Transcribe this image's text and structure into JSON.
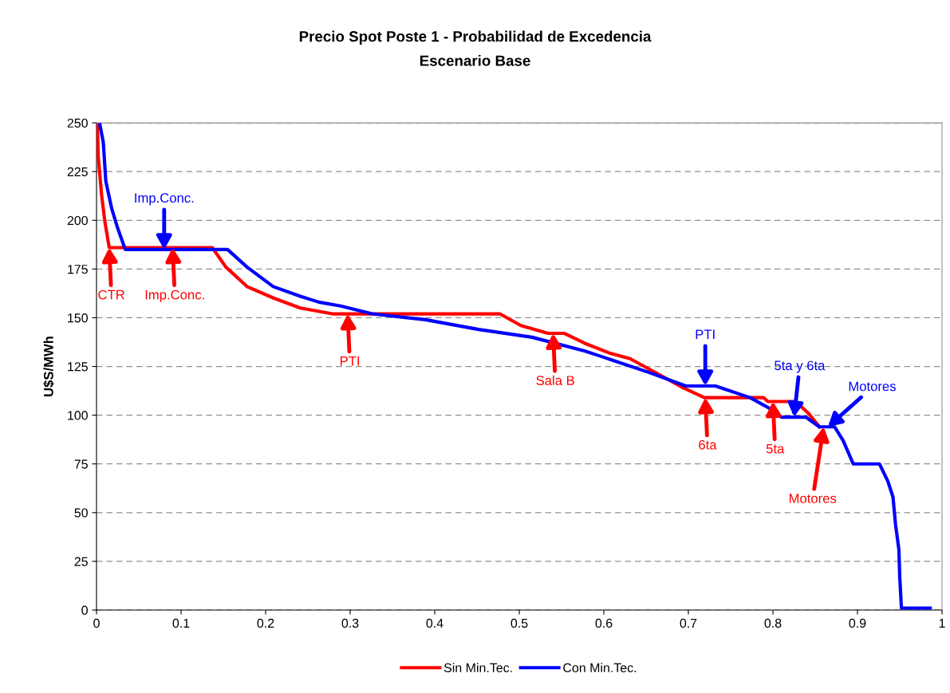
{
  "chart_data": {
    "type": "line",
    "title": "Precio Spot Poste 1 - Probabilidad de Excedencia",
    "subtitle": "Escenario Base",
    "ylabel": "U$S/MWh",
    "xlim": [
      0,
      1
    ],
    "xticks": [
      0,
      0.1,
      0.2,
      0.3,
      0.4,
      0.5,
      0.6,
      0.7,
      0.8,
      0.9,
      1
    ],
    "ylim": [
      0,
      250
    ],
    "yticks": [
      0,
      25,
      50,
      75,
      100,
      125,
      150,
      175,
      200,
      225,
      250
    ],
    "grid": "y",
    "legend": "bottom",
    "line_style": "solid",
    "marker": "none",
    "series": [
      {
        "name": "Sin Min.Tec.",
        "color": "#ff0000",
        "x": [
          0.001,
          0.002,
          0.006,
          0.01,
          0.015,
          0.054,
          0.137,
          0.153,
          0.178,
          0.21,
          0.241,
          0.279,
          0.29,
          0.477,
          0.502,
          0.534,
          0.553,
          0.577,
          0.606,
          0.631,
          0.669,
          0.694,
          0.719,
          0.789,
          0.794,
          0.827,
          0.842,
          0.855
        ],
        "values": [
          249,
          233,
          213,
          199,
          186,
          186,
          186,
          176,
          166,
          160,
          155,
          152,
          152,
          152,
          146,
          142,
          142,
          137,
          132,
          129,
          120,
          114,
          109,
          109,
          107,
          107,
          101,
          94
        ]
      },
      {
        "name": "Con Min.Tec.",
        "color": "#0000ff",
        "x": [
          0.004,
          0.008,
          0.011,
          0.018,
          0.025,
          0.034,
          0.155,
          0.178,
          0.209,
          0.241,
          0.263,
          0.289,
          0.326,
          0.389,
          0.452,
          0.515,
          0.577,
          0.591,
          0.653,
          0.697,
          0.732,
          0.773,
          0.798,
          0.81,
          0.839,
          0.855,
          0.873,
          0.883,
          0.895,
          0.926,
          0.936,
          0.942,
          0.945,
          0.949,
          0.95,
          0.952,
          0.986
        ],
        "values": [
          249,
          240,
          220,
          206,
          196,
          185,
          185,
          176,
          166,
          161,
          158,
          156,
          152,
          149,
          144,
          140,
          133,
          131,
          122,
          115,
          115,
          109,
          103,
          99,
          99,
          94,
          94,
          87,
          75,
          75,
          66,
          58,
          44,
          31,
          17,
          1,
          1
        ]
      }
    ],
    "annotations": [
      {
        "text": "CTR",
        "x": 0.015,
        "y": 186
      },
      {
        "text": "Imp.Conc.",
        "x": 0.09,
        "y": 186
      },
      {
        "text": "PTI",
        "x": 0.297,
        "y": 152
      },
      {
        "text": "Sala B",
        "x": 0.54,
        "y": 142
      },
      {
        "text": "6ta",
        "x": 0.72,
        "y": 109
      },
      {
        "text": "5ta",
        "x": 0.8,
        "y": 107
      },
      {
        "text": "Motores",
        "x": 0.86,
        "y": 94
      },
      {
        "text": "Imp.Conc.",
        "x": 0.08,
        "y": 185
      },
      {
        "text": "PTI",
        "x": 0.72,
        "y": 115
      },
      {
        "text": "5ta y 6ta",
        "x": 0.825,
        "y": 99
      },
      {
        "text": "Motores",
        "x": 0.865,
        "y": 94
      }
    ]
  }
}
